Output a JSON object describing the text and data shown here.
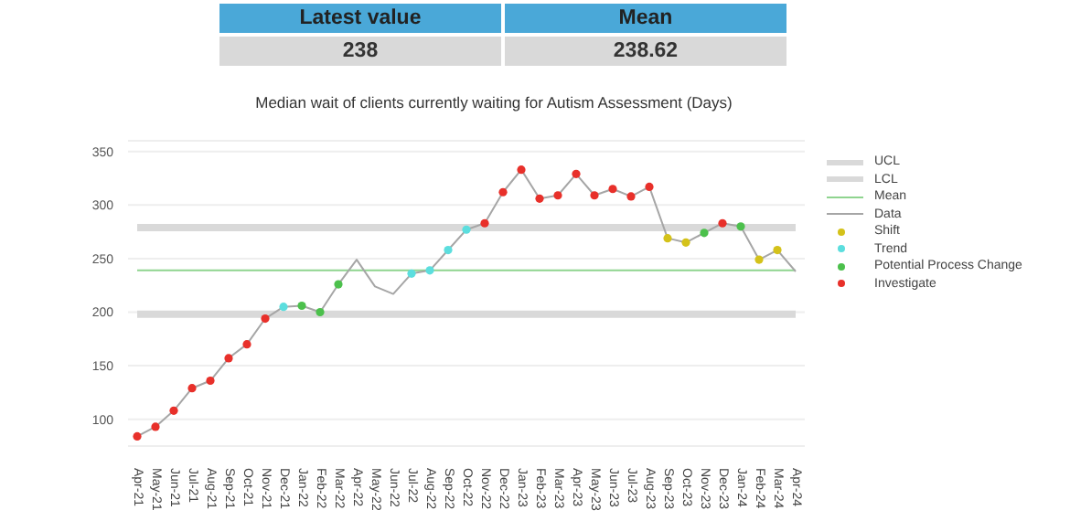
{
  "chart_data": {
    "type": "line",
    "title": "Median wait of clients currently waiting for Autism Assessment (Days)",
    "annotations": [
      "Latest value",
      "238",
      "Mean",
      "238.62"
    ],
    "categories": [
      "Apr-21",
      "May-21",
      "Jun-21",
      "Jul-21",
      "Aug-21",
      "Sep-21",
      "Oct-21",
      "Nov-21",
      "Dec-21",
      "Jan-22",
      "Feb-22",
      "Mar-22",
      "Apr-22",
      "May-22",
      "Jun-22",
      "Jul-22",
      "Aug-22",
      "Sep-22",
      "Oct-22",
      "Nov-22",
      "Dec-22",
      "Jan-23",
      "Feb-23",
      "Mar-23",
      "Apr-23",
      "May-23",
      "Jun-23",
      "Jul-23",
      "Aug-23",
      "Sep-23",
      "Oct-23",
      "Nov-23",
      "Dec-23",
      "Jan-24",
      "Feb-24",
      "Mar-24",
      "Apr-24"
    ],
    "ylim": [
      75,
      360
    ],
    "yticks": [
      100,
      150,
      200,
      250,
      300,
      350
    ],
    "grid": "y",
    "legend": "right",
    "series": [
      {
        "name": "UCL",
        "color": "#d9d9d9",
        "marker": "none",
        "values": [
          279,
          279,
          279,
          279,
          279,
          279,
          279,
          279,
          279,
          279,
          279,
          279,
          279,
          279,
          279,
          279,
          279,
          279,
          279,
          279,
          279,
          279,
          279,
          279,
          279,
          279,
          279,
          279,
          279,
          279,
          279,
          279,
          279,
          279,
          279,
          279,
          279
        ]
      },
      {
        "name": "LCL",
        "color": "#d9d9d9",
        "marker": "none",
        "values": [
          198,
          198,
          198,
          198,
          198,
          198,
          198,
          198,
          198,
          198,
          198,
          198,
          198,
          198,
          198,
          198,
          198,
          198,
          198,
          198,
          198,
          198,
          198,
          198,
          198,
          198,
          198,
          198,
          198,
          198,
          198,
          198,
          198,
          198,
          198,
          198,
          198
        ]
      },
      {
        "name": "Mean",
        "color": "#8fd48f",
        "marker": "none",
        "values": [
          239,
          239,
          239,
          239,
          239,
          239,
          239,
          239,
          239,
          239,
          239,
          239,
          239,
          239,
          239,
          239,
          239,
          239,
          239,
          239,
          239,
          239,
          239,
          239,
          239,
          239,
          239,
          239,
          239,
          239,
          239,
          239,
          239,
          239,
          239,
          239,
          239
        ]
      },
      {
        "name": "Data",
        "color": "#a6a6a6",
        "marker": "none",
        "values": [
          84,
          93,
          108,
          129,
          136,
          157,
          170,
          194,
          205,
          206,
          200,
          226,
          249,
          224,
          217,
          236,
          239,
          258,
          277,
          283,
          312,
          333,
          306,
          309,
          329,
          309,
          315,
          308,
          317,
          269,
          265,
          274,
          283,
          280,
          249,
          258,
          238
        ]
      },
      {
        "name": "Shift",
        "type": "scatter",
        "color": "#d4c21a",
        "marker": "circle",
        "values": [
          null,
          null,
          null,
          null,
          null,
          null,
          null,
          null,
          null,
          null,
          null,
          null,
          null,
          null,
          null,
          null,
          null,
          null,
          null,
          null,
          null,
          null,
          null,
          null,
          null,
          null,
          null,
          null,
          null,
          269,
          265,
          null,
          null,
          null,
          249,
          258,
          null
        ]
      },
      {
        "name": "Trend",
        "type": "scatter",
        "color": "#5cdede",
        "marker": "circle",
        "values": [
          null,
          null,
          null,
          null,
          null,
          null,
          null,
          null,
          205,
          null,
          null,
          null,
          null,
          null,
          null,
          236,
          239,
          258,
          277,
          null,
          null,
          null,
          null,
          null,
          null,
          null,
          null,
          null,
          null,
          null,
          null,
          null,
          null,
          null,
          null,
          null,
          null
        ]
      },
      {
        "name": "Potential Process Change",
        "type": "scatter",
        "color": "#4cc04c",
        "marker": "circle",
        "values": [
          null,
          null,
          null,
          null,
          null,
          null,
          null,
          null,
          null,
          206,
          200,
          226,
          null,
          null,
          null,
          null,
          null,
          null,
          null,
          null,
          null,
          null,
          null,
          null,
          null,
          null,
          null,
          null,
          null,
          null,
          null,
          274,
          null,
          280,
          null,
          null,
          null
        ]
      },
      {
        "name": "Investigate",
        "type": "scatter",
        "color": "#e8302a",
        "marker": "circle",
        "values": [
          84,
          93,
          108,
          129,
          136,
          157,
          170,
          194,
          null,
          null,
          null,
          null,
          null,
          null,
          null,
          null,
          null,
          null,
          null,
          283,
          312,
          333,
          306,
          309,
          329,
          309,
          315,
          308,
          317,
          null,
          null,
          null,
          283,
          null,
          null,
          null,
          null
        ]
      }
    ]
  }
}
